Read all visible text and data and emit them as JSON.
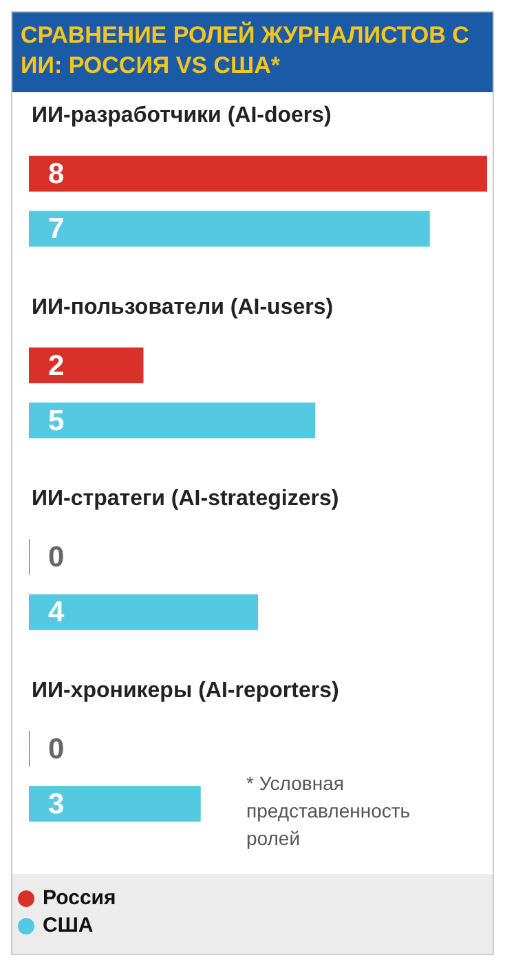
{
  "chart_data": {
    "type": "bar",
    "orientation": "horizontal",
    "title": "СРАВНЕНИЕ РОЛЕЙ ЖУРНАЛИСТОВ С ИИ: РОССИЯ VS США*",
    "categories": [
      "ИИ-разработчики (AI-doers)",
      "ИИ-пользователи (AI-users)",
      "ИИ-стратеги (AI-strategizers)",
      "ИИ-хроникеры (AI-reporters)"
    ],
    "series": [
      {
        "name": "Россия",
        "color": "#d9302a",
        "values": [
          8,
          2,
          0,
          0
        ]
      },
      {
        "name": "США",
        "color": "#55c9e2",
        "values": [
          7,
          5,
          4,
          3
        ]
      }
    ],
    "xlim": [
      0,
      8
    ],
    "data_labels": true,
    "legend": "bottom",
    "grid": false,
    "annotations": [
      "* Условная представленность ролей"
    ]
  }
}
